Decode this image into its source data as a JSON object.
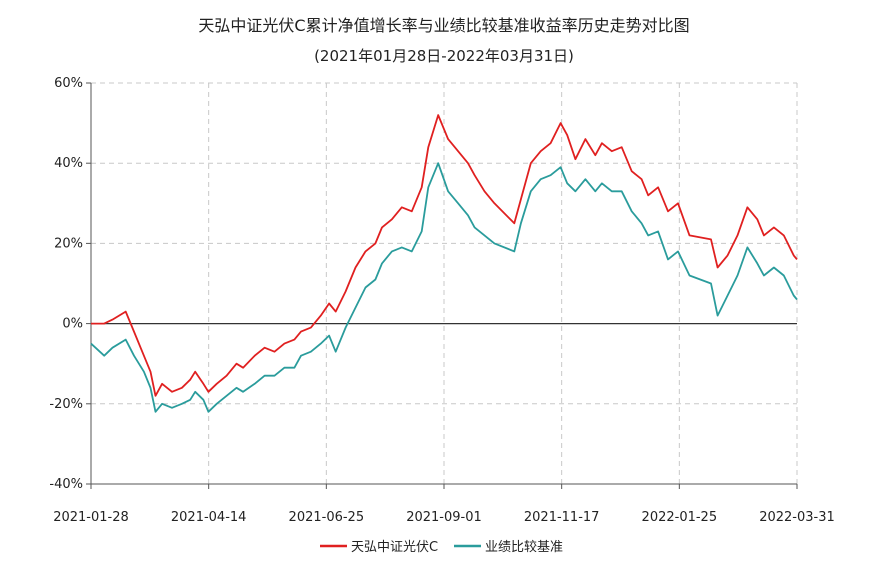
{
  "chart_data": {
    "type": "line",
    "title": "天弘中证光伏C累计净值增长率与业绩比较基准收益率历史走势对比图",
    "subtitle": "(2021年01月28日-2022年03月31日)",
    "ylim": [
      -40,
      60
    ],
    "y_ticks": [
      "60%",
      "40%",
      "20%",
      "0%",
      "-20%",
      "-40%"
    ],
    "x_ticks": [
      "2021-01-28",
      "2021-04-14",
      "2021-06-25",
      "2021-09-01",
      "2021-11-17",
      "2022-01-25",
      "2022-03-31"
    ],
    "grid": true,
    "legend_position": "bottom",
    "x_dates": [
      "2021-01-28",
      "2021-02-05",
      "2021-02-10",
      "2021-02-18",
      "2021-02-23",
      "2021-03-01",
      "2021-03-05",
      "2021-03-08",
      "2021-03-12",
      "2021-03-18",
      "2021-03-24",
      "2021-03-29",
      "2021-04-01",
      "2021-04-06",
      "2021-04-09",
      "2021-04-14",
      "2021-04-20",
      "2021-04-26",
      "2021-04-30",
      "2021-05-07",
      "2021-05-13",
      "2021-05-19",
      "2021-05-25",
      "2021-05-31",
      "2021-06-04",
      "2021-06-10",
      "2021-06-16",
      "2021-06-21",
      "2021-06-25",
      "2021-07-01",
      "2021-07-07",
      "2021-07-13",
      "2021-07-19",
      "2021-07-23",
      "2021-07-29",
      "2021-08-04",
      "2021-08-10",
      "2021-08-16",
      "2021-08-20",
      "2021-08-26",
      "2021-09-01",
      "2021-09-07",
      "2021-09-13",
      "2021-09-17",
      "2021-09-23",
      "2021-09-29",
      "2021-10-11",
      "2021-10-15",
      "2021-10-21",
      "2021-10-27",
      "2021-11-02",
      "2021-11-08",
      "2021-11-12",
      "2021-11-17",
      "2021-11-23",
      "2021-11-29",
      "2021-12-03",
      "2021-12-09",
      "2021-12-15",
      "2021-12-21",
      "2021-12-27",
      "2021-12-31",
      "2022-01-06",
      "2022-01-12",
      "2022-01-18",
      "2022-01-25",
      "2022-02-07",
      "2022-02-11",
      "2022-02-17",
      "2022-02-23",
      "2022-03-01",
      "2022-03-07",
      "2022-03-11",
      "2022-03-17",
      "2022-03-23",
      "2022-03-29",
      "2022-03-31"
    ],
    "series": [
      {
        "name": "天弘中证光伏C",
        "color": "#e02020",
        "values": [
          0,
          0,
          1,
          3,
          -2,
          -8,
          -12,
          -18,
          -15,
          -17,
          -16,
          -14,
          -12,
          -15,
          -17,
          -15,
          -13,
          -10,
          -11,
          -8,
          -6,
          -7,
          -5,
          -4,
          -2,
          -1,
          2,
          5,
          3,
          8,
          14,
          18,
          20,
          24,
          26,
          29,
          28,
          34,
          44,
          52,
          46,
          43,
          40,
          37,
          33,
          30,
          25,
          31,
          40,
          43,
          45,
          50,
          47,
          41,
          46,
          42,
          45,
          43,
          44,
          38,
          36,
          32,
          34,
          28,
          30,
          22,
          21,
          14,
          17,
          22,
          29,
          26,
          22,
          24,
          22,
          17,
          16
        ],
        "label": "天弘中证光伏C"
      },
      {
        "name": "业绩比较基准",
        "color": "#2a9c9c",
        "values": [
          -5,
          -8,
          -6,
          -4,
          -8,
          -12,
          -16,
          -22,
          -20,
          -21,
          -20,
          -19,
          -17,
          -19,
          -22,
          -20,
          -18,
          -16,
          -17,
          -15,
          -13,
          -13,
          -11,
          -11,
          -8,
          -7,
          -5,
          -3,
          -7,
          -1,
          4,
          9,
          11,
          15,
          18,
          19,
          18,
          23,
          34,
          40,
          33,
          30,
          27,
          24,
          22,
          20,
          18,
          25,
          33,
          36,
          37,
          39,
          35,
          33,
          36,
          33,
          35,
          33,
          33,
          28,
          25,
          22,
          23,
          16,
          18,
          12,
          10,
          2,
          7,
          12,
          19,
          15,
          12,
          14,
          12,
          7,
          6
        ],
        "label": "业绩比较基准"
      }
    ]
  }
}
